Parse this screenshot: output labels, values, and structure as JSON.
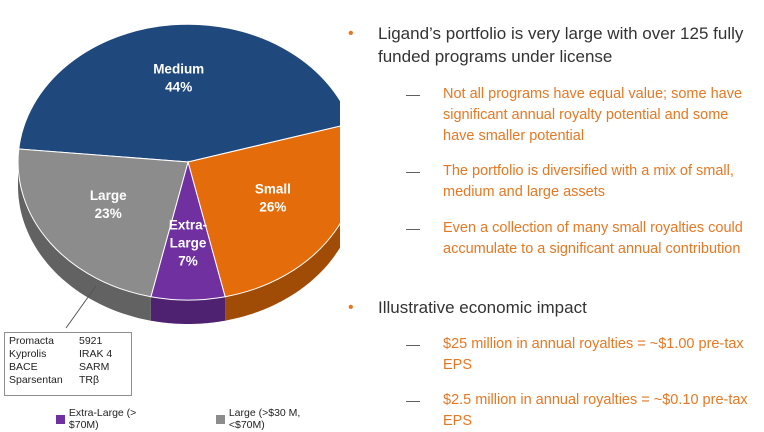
{
  "chart_data": {
    "type": "pie",
    "slices": [
      {
        "label_line1": "Medium",
        "label_line2": "",
        "value": 44,
        "value_text": "44%",
        "color": "#1f497d"
      },
      {
        "label_line1": "Small",
        "label_line2": "",
        "value": 26,
        "value_text": "26%",
        "color": "#e46c0a"
      },
      {
        "label_line1": "Extra-",
        "label_line2": "Large",
        "value": 7,
        "value_text": "7%",
        "color": "#7030a0"
      },
      {
        "label_line1": "Large",
        "label_line2": "",
        "value": 23,
        "value_text": "23%",
        "color": "#8c8c8c"
      }
    ],
    "legend": [
      {
        "label": "Extra-Large (> $70M)",
        "color": "#7030a0"
      },
      {
        "label": "Large (>$30 M, <$70M)",
        "color": "#8c8c8c"
      }
    ],
    "style": "3d"
  },
  "examples_box": {
    "rows": [
      {
        "left": "Promacta",
        "right": "5921"
      },
      {
        "left": "Kyprolis",
        "right": "IRAK 4"
      },
      {
        "left": "BACE",
        "right": "SARM"
      },
      {
        "left": "Sparsentan",
        "right": "TRβ"
      }
    ]
  },
  "bullets": [
    {
      "text": "Ligand’s portfolio is very large with over 125 fully funded programs under license",
      "sub": [
        "Not all programs have equal value; some have significant annual royalty potential and some have smaller potential",
        "The portfolio is diversified with a mix of small, medium and large assets",
        "Even a collection of many small royalties could accumulate to a significant annual contribution"
      ]
    },
    {
      "text": "Illustrative economic impact",
      "sub": [
        "$25 million in annual royalties = ~$1.00 pre-tax EPS",
        "$2.5 million in annual royalties = ~$0.10 pre-tax EPS"
      ]
    }
  ],
  "colors": {
    "accent": "#e87722",
    "text": "#333333"
  }
}
